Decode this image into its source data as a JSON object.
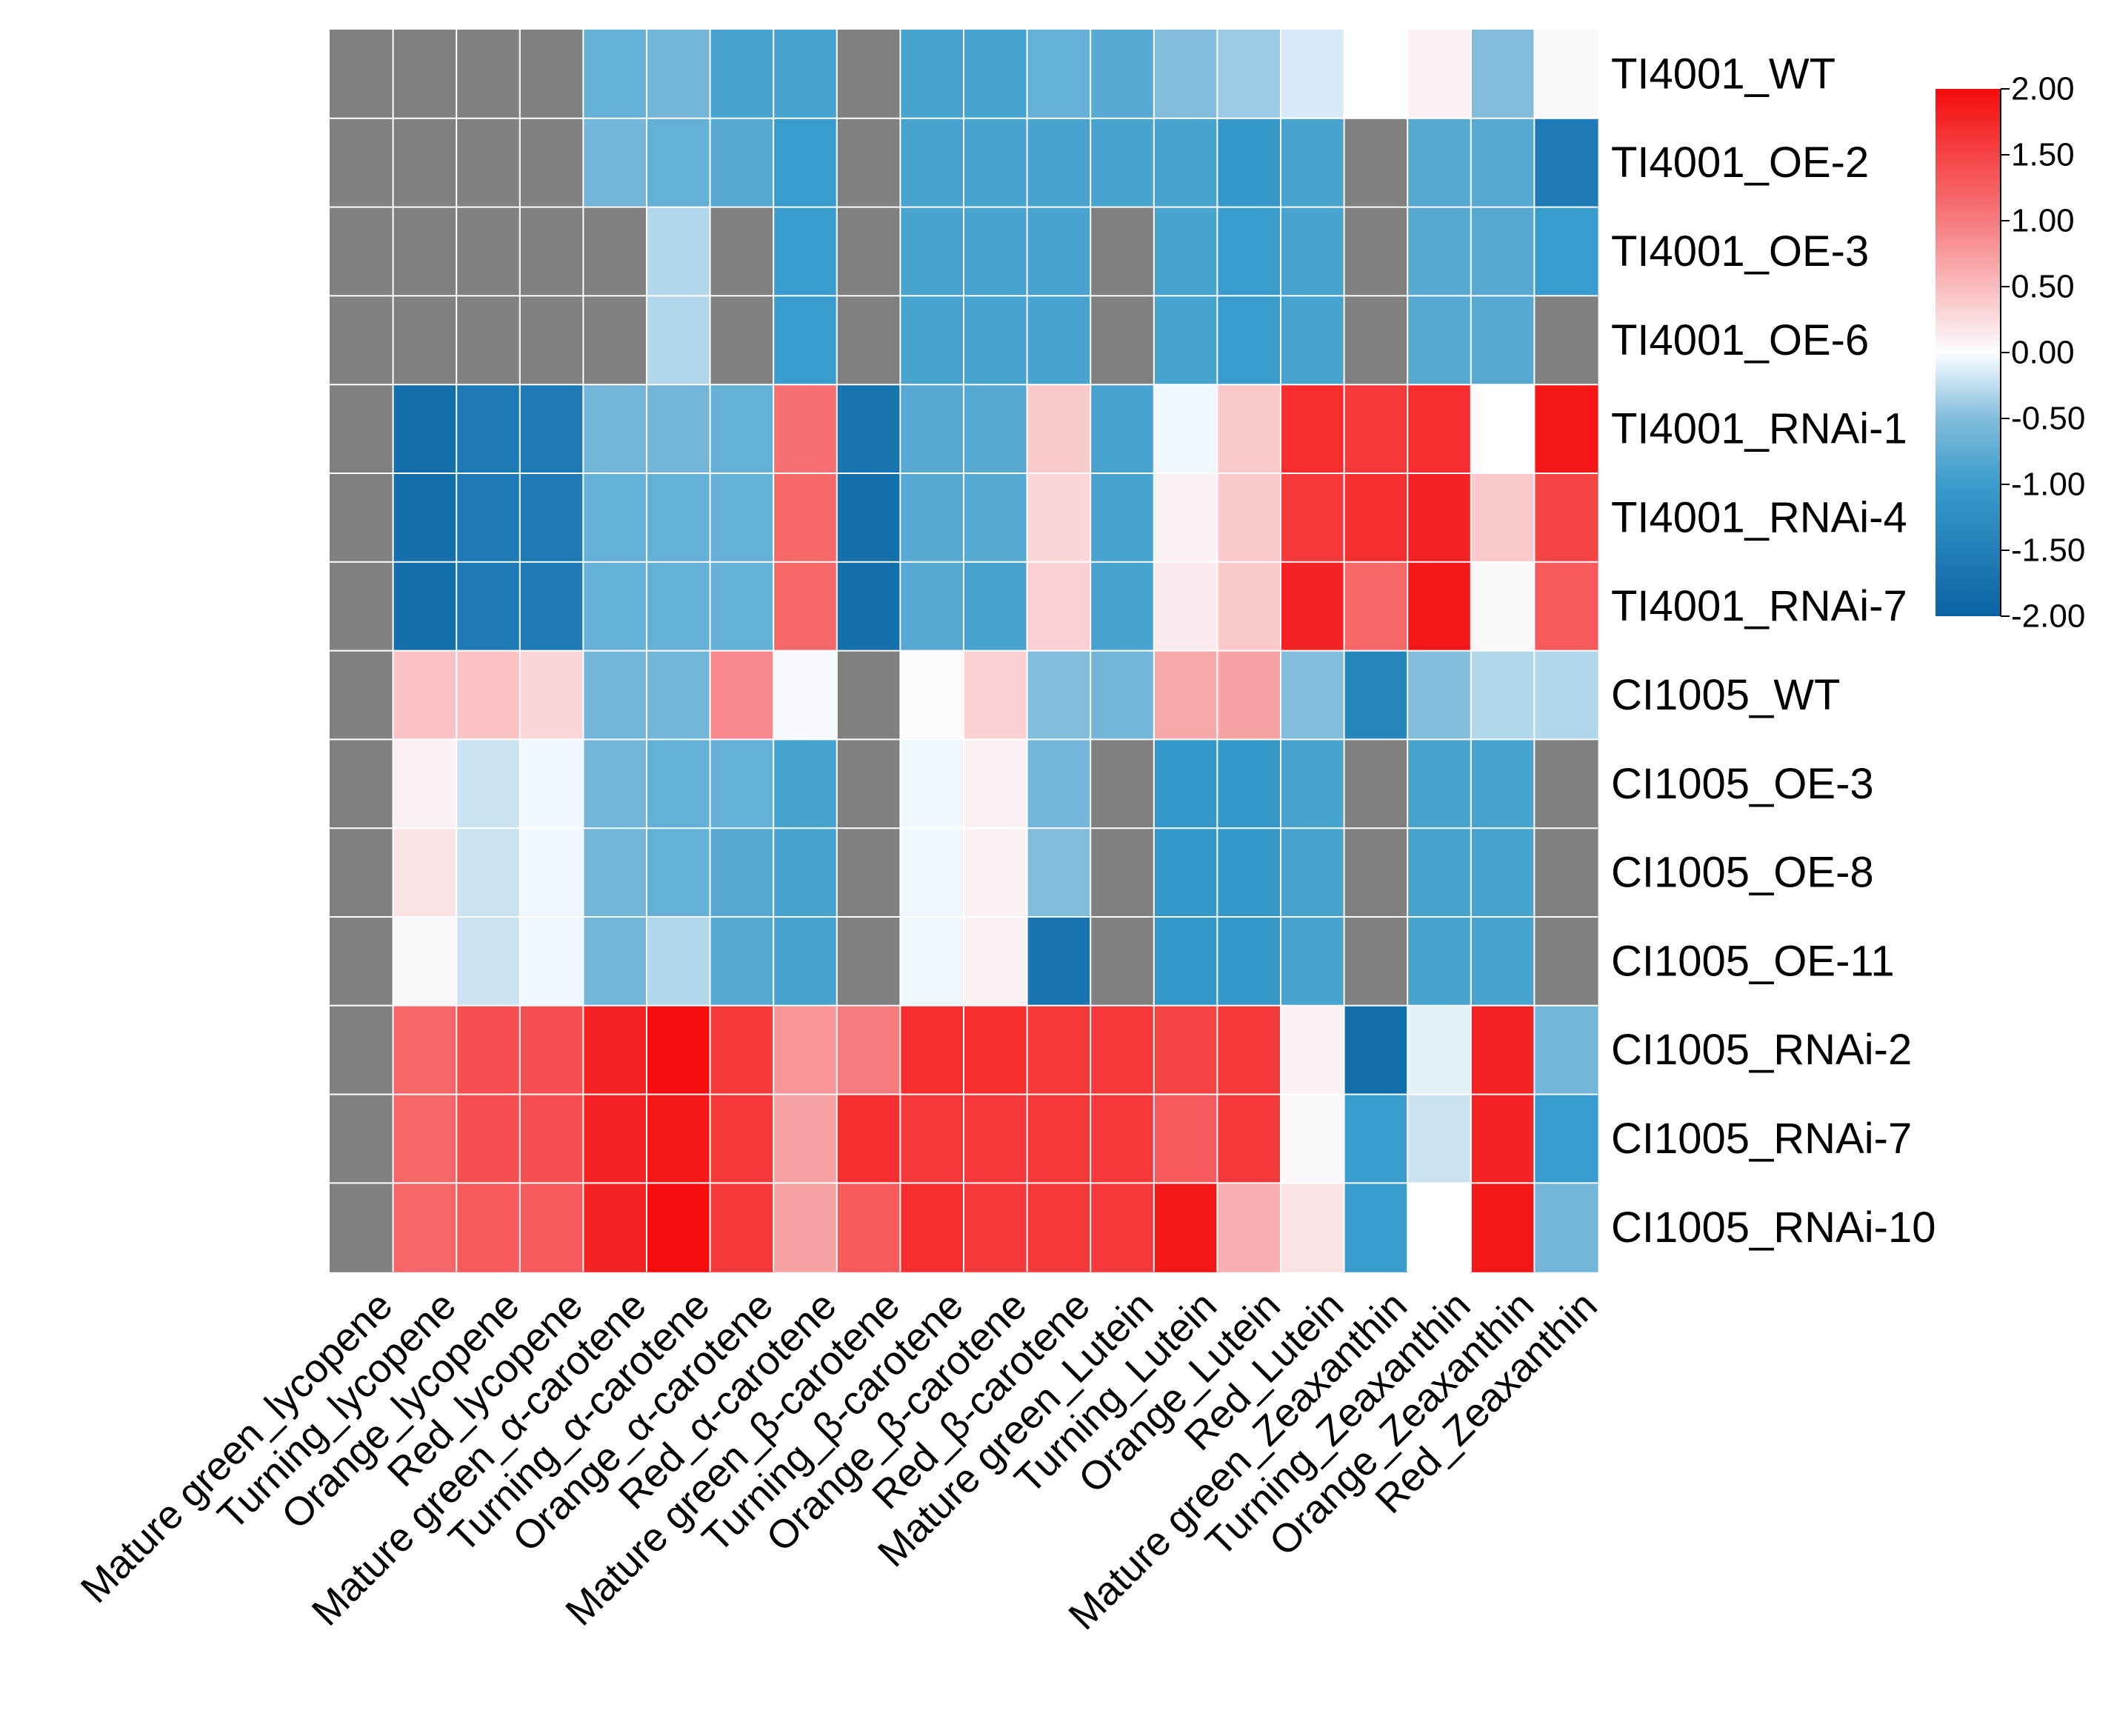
{
  "chart_data": {
    "type": "heatmap",
    "rows": [
      "TI4001_WT",
      "TI4001_OE-2",
      "TI4001_OE-3",
      "TI4001_OE-6",
      "TI4001_RNAi-1",
      "TI4001_RNAi-4",
      "TI4001_RNAi-7",
      "CI1005_WT",
      "CI1005_OE-3",
      "CI1005_OE-8",
      "CI1005_OE-11",
      "CI1005_RNAi-2",
      "CI1005_RNAi-7",
      "CI1005_RNAi-10"
    ],
    "columns": [
      "Mature green_lycopene",
      "Turning_lycopene",
      "Orange_lycopene",
      "Red_lycopene",
      "Mature green_α-carotene",
      "Turning_α-carotene",
      "Orange_α-carotene",
      "Red_α-carotene",
      "Mature green_β-carotene",
      "Turning_β-carotene",
      "Orange_β-carotene",
      "Red_β-carotene",
      "Mature green_Lutein",
      "Turning_Lutein",
      "Orange_Lutein",
      "Red_Lutein",
      "Mature green_Zeaxanthin",
      "Turning_Zeaxanthin",
      "Orange_Zeaxanthin",
      "Red_Zeaxanthin"
    ],
    "values": [
      [
        null,
        null,
        null,
        null,
        -0.7,
        -0.6,
        -0.9,
        -0.9,
        null,
        -0.9,
        -0.9,
        -0.7,
        -0.8,
        -0.5,
        -0.4,
        -0.15,
        0.0,
        0.1,
        -0.5,
        0.05
      ],
      [
        null,
        null,
        null,
        null,
        -0.6,
        -0.7,
        -0.8,
        -1.0,
        null,
        -0.9,
        -0.9,
        -0.9,
        -0.9,
        -0.9,
        -1.1,
        -0.9,
        null,
        -0.8,
        -0.8,
        -1.6
      ],
      [
        null,
        null,
        null,
        null,
        null,
        -0.3,
        null,
        -1.0,
        null,
        -0.9,
        -0.9,
        -0.9,
        null,
        -0.9,
        -1.0,
        -0.9,
        null,
        -0.8,
        -0.8,
        -1.0
      ],
      [
        null,
        null,
        null,
        null,
        null,
        -0.3,
        null,
        -1.0,
        null,
        -0.9,
        -0.9,
        -0.9,
        null,
        -0.9,
        -1.0,
        -0.9,
        null,
        -0.8,
        -0.8,
        null
      ],
      [
        null,
        -1.8,
        -1.6,
        -1.6,
        -0.6,
        -0.6,
        -0.7,
        1.1,
        -1.7,
        -0.8,
        -0.8,
        0.4,
        -0.9,
        -0.05,
        0.4,
        1.7,
        1.6,
        1.7,
        0.0,
        1.9
      ],
      [
        null,
        -1.8,
        -1.6,
        -1.6,
        -0.7,
        -0.7,
        -0.7,
        1.2,
        -1.8,
        -0.8,
        -0.8,
        0.3,
        -0.9,
        0.1,
        0.4,
        1.6,
        1.7,
        1.8,
        0.4,
        1.5
      ],
      [
        null,
        -1.8,
        -1.6,
        -1.6,
        -0.7,
        -0.7,
        -0.7,
        1.2,
        -1.8,
        -0.8,
        -0.9,
        0.35,
        -0.9,
        0.15,
        0.4,
        1.8,
        1.2,
        1.9,
        0.05,
        1.3
      ],
      [
        null,
        0.45,
        0.45,
        0.3,
        -0.6,
        -0.6,
        0.9,
        -0.02,
        null,
        0.03,
        0.35,
        -0.5,
        -0.6,
        0.65,
        0.7,
        -0.5,
        -1.4,
        -0.5,
        -0.3,
        -0.3
      ],
      [
        null,
        0.1,
        -0.2,
        -0.05,
        -0.6,
        -0.7,
        -0.7,
        -0.9,
        null,
        -0.05,
        0.1,
        -0.6,
        null,
        -1.1,
        -1.1,
        -0.9,
        null,
        -0.9,
        -0.9,
        null
      ],
      [
        null,
        0.2,
        -0.2,
        -0.05,
        -0.6,
        -0.7,
        -0.8,
        -0.9,
        null,
        -0.05,
        0.1,
        -0.5,
        null,
        -1.1,
        -1.1,
        -0.9,
        null,
        -0.9,
        -0.9,
        null
      ],
      [
        null,
        0.05,
        -0.2,
        -0.05,
        -0.6,
        -0.3,
        -0.8,
        -0.9,
        null,
        -0.05,
        0.1,
        -1.7,
        null,
        -1.1,
        -1.1,
        -0.9,
        null,
        -0.9,
        -0.9,
        null
      ],
      [
        null,
        1.2,
        1.4,
        1.4,
        1.8,
        2.0,
        1.6,
        0.8,
        1.0,
        1.7,
        1.7,
        1.6,
        1.6,
        1.5,
        1.6,
        0.1,
        -1.8,
        -0.1,
        1.8,
        -0.6
      ],
      [
        null,
        1.2,
        1.4,
        1.4,
        1.8,
        1.9,
        1.6,
        0.7,
        1.7,
        1.6,
        1.6,
        1.6,
        1.6,
        1.3,
        1.6,
        0.05,
        -1.0,
        -0.2,
        1.8,
        -1.0
      ],
      [
        null,
        1.2,
        1.3,
        1.3,
        1.8,
        2.0,
        1.6,
        0.7,
        1.3,
        1.7,
        1.6,
        1.6,
        1.6,
        1.9,
        0.6,
        0.2,
        -1.0,
        0.0,
        1.9,
        -0.6
      ]
    ],
    "missing_color": "#808080",
    "colorscale": {
      "min": -2.0,
      "max": 2.0,
      "stops": [
        {
          "value": -2.0,
          "color": "#0a64a4"
        },
        {
          "value": -1.0,
          "color": "#3a9ccc"
        },
        {
          "value": -0.5,
          "color": "#82bddc"
        },
        {
          "value": 0.0,
          "color": "#fbfdff"
        },
        {
          "value": 0.5,
          "color": "#f9bcbe"
        },
        {
          "value": 1.0,
          "color": "#f67b7e"
        },
        {
          "value": 2.0,
          "color": "#f50c0c"
        }
      ],
      "ticks": [
        "2.00",
        "1.50",
        "1.00",
        "0.50",
        "0.00",
        "-0.50",
        "-1.00",
        "-1.50",
        "-2.00"
      ]
    },
    "legend_position": "right"
  }
}
